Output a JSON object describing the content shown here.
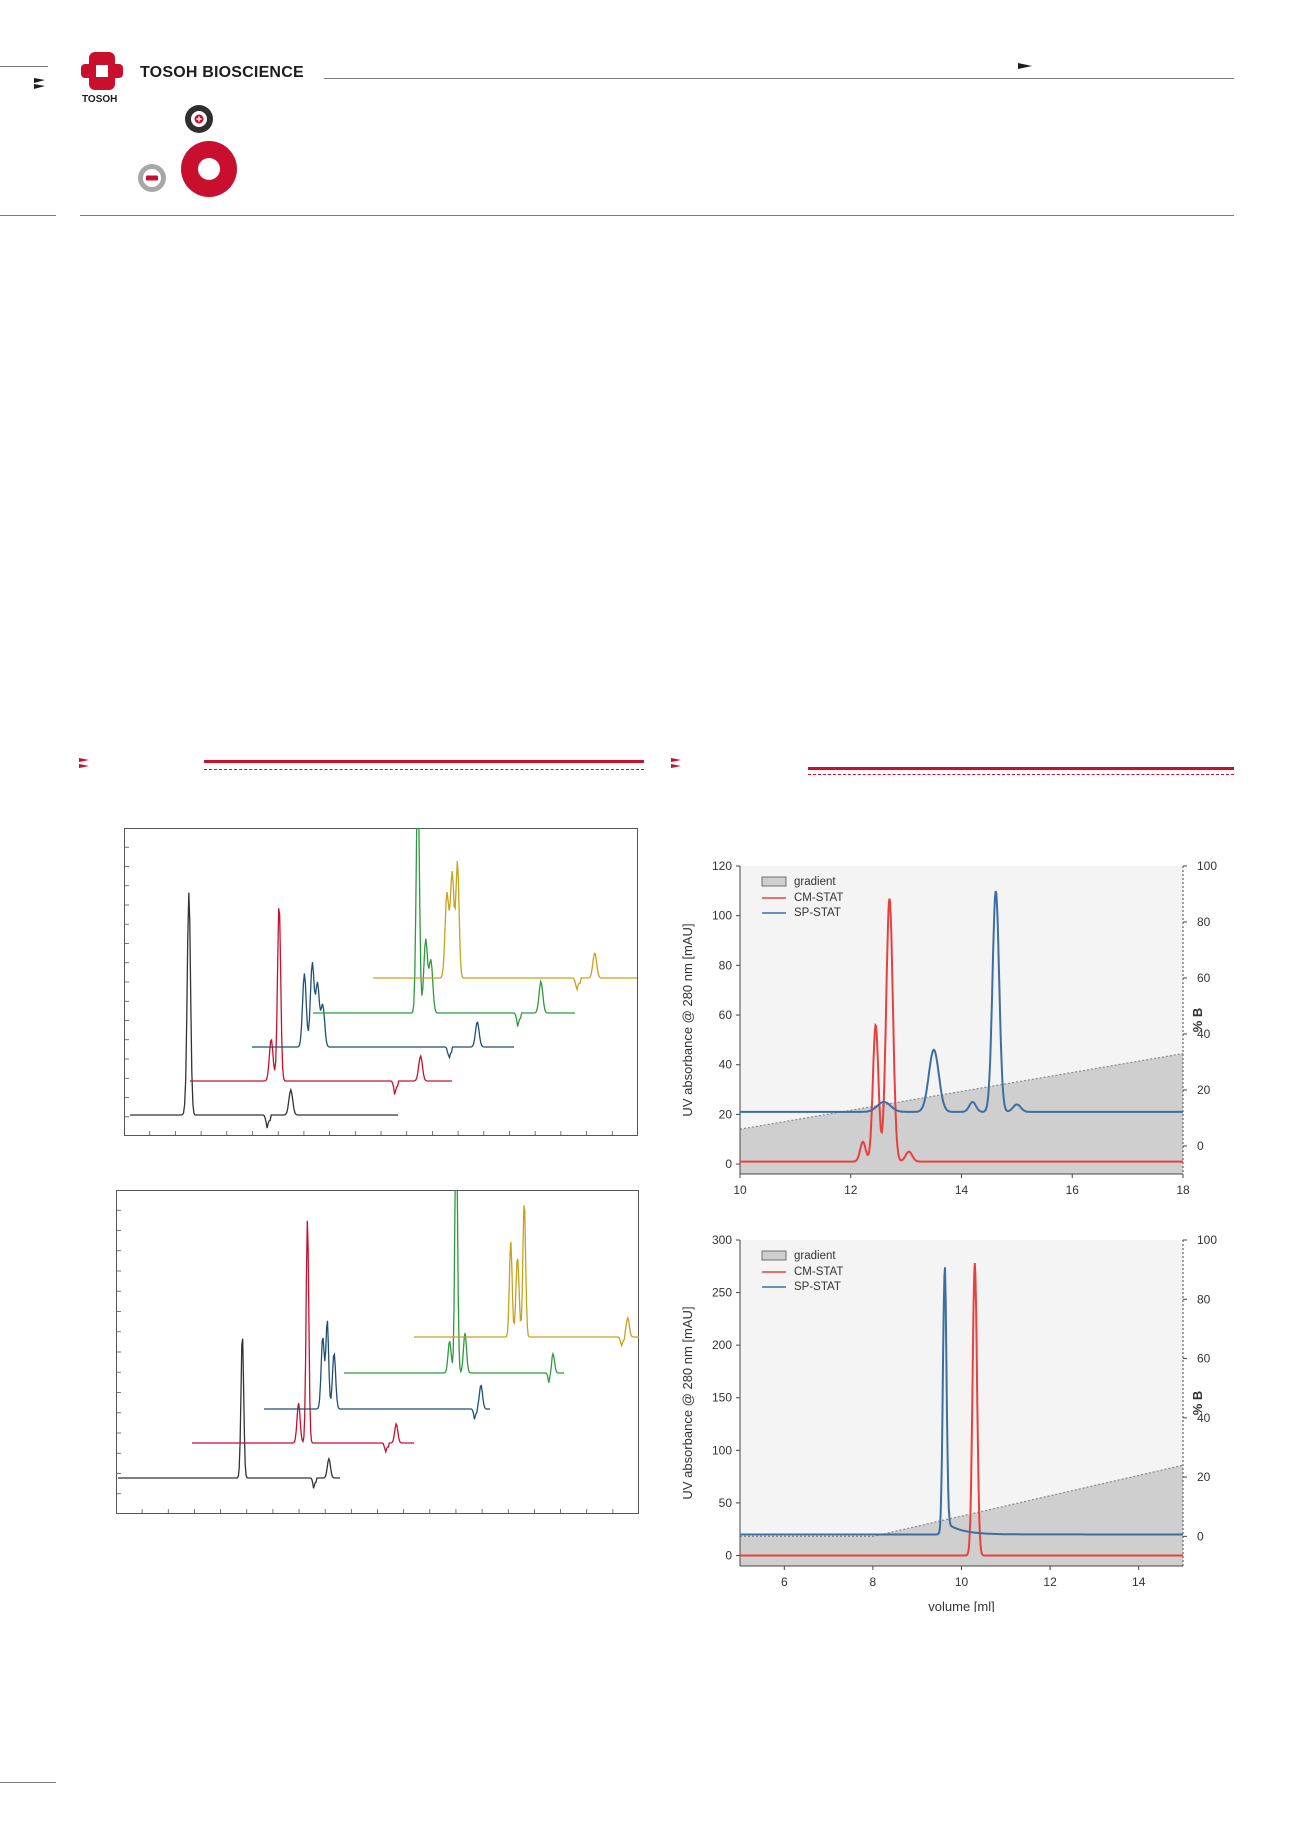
{
  "header": {
    "brand_name": "TOSOH BIOSCIENCE",
    "brand_small": "TOSOH"
  },
  "colors": {
    "brand_red": "#c8102e",
    "rule_gray": "#7a7a7a",
    "cm_stat": "#e8403f",
    "sp_stat": "#3d6ea3",
    "gradient_fill": "#cfcfcf"
  },
  "icons": {
    "logo": "tosoh-cross-logo",
    "nav_arrow": "double-chevron-icon",
    "plus_small": "cation-plus-icon",
    "minus_small": "anion-minus-icon",
    "red_ring": "red-ring-icon"
  },
  "stacked_panels": [
    {
      "traces": [
        {
          "color": "#333333",
          "peaks": [
            {
              "x": 0.22,
              "h": 1.0
            },
            {
              "x": 0.215,
              "h": 0.08
            },
            {
              "x": 0.6,
              "h": 0.12
            }
          ],
          "dip": 0.51
        },
        {
          "color": "#c8102e",
          "peaks": [
            {
              "x": 0.34,
              "h": 0.85
            },
            {
              "x": 0.31,
              "h": 0.2
            },
            {
              "x": 0.88,
              "h": 0.12
            }
          ],
          "dip": 0.78
        },
        {
          "color": "#1f4e79",
          "peaks": [
            {
              "x": 0.2,
              "h": 0.35
            },
            {
              "x": 0.23,
              "h": 0.4
            },
            {
              "x": 0.25,
              "h": 0.3
            },
            {
              "x": 0.27,
              "h": 0.2
            },
            {
              "x": 0.86,
              "h": 0.12
            }
          ],
          "dip": 0.75
        },
        {
          "color": "#2e9a3e",
          "peaks": [
            {
              "x": 0.4,
              "h": 1.15
            },
            {
              "x": 0.43,
              "h": 0.35
            },
            {
              "x": 0.45,
              "h": 0.25
            },
            {
              "x": 0.87,
              "h": 0.15
            }
          ],
          "dip": 0.78
        },
        {
          "color": "#c7a21b",
          "peaks": [
            {
              "x": 0.28,
              "h": 0.4
            },
            {
              "x": 0.3,
              "h": 0.5
            },
            {
              "x": 0.32,
              "h": 0.55
            },
            {
              "x": 0.84,
              "h": 0.12
            }
          ],
          "dip": 0.77
        }
      ]
    },
    {
      "traces": [
        {
          "color": "#333333",
          "peaks": [
            {
              "x": 0.56,
              "h": 0.9
            },
            {
              "x": 0.95,
              "h": 0.12
            }
          ],
          "dip": 0.88
        },
        {
          "color": "#c8102e",
          "peaks": [
            {
              "x": 0.52,
              "h": 1.4
            },
            {
              "x": 0.48,
              "h": 0.25
            },
            {
              "x": 0.92,
              "h": 0.12
            }
          ],
          "dip": 0.87
        },
        {
          "color": "#1f4e79",
          "peaks": [
            {
              "x": 0.26,
              "h": 0.45
            },
            {
              "x": 0.28,
              "h": 0.55
            },
            {
              "x": 0.31,
              "h": 0.35
            },
            {
              "x": 0.96,
              "h": 0.15
            }
          ],
          "dip": 0.93
        },
        {
          "color": "#2e9a3e",
          "peaks": [
            {
              "x": 0.51,
              "h": 1.6
            },
            {
              "x": 0.48,
              "h": 0.2
            },
            {
              "x": 0.55,
              "h": 0.25
            },
            {
              "x": 0.95,
              "h": 0.12
            }
          ],
          "dip": 0.93
        },
        {
          "color": "#c7a21b",
          "peaks": [
            {
              "x": 0.43,
              "h": 0.6
            },
            {
              "x": 0.46,
              "h": 0.5
            },
            {
              "x": 0.49,
              "h": 0.85
            },
            {
              "x": 0.95,
              "h": 0.12
            }
          ],
          "dip": 0.92
        }
      ]
    }
  ],
  "chart_data": [
    {
      "type": "line",
      "title": "",
      "xlabel": "",
      "ylabel": "UV absorbance @ 280 nm [mAU]",
      "y2label": "% B",
      "xlim": [
        10,
        18
      ],
      "ylim": [
        -4,
        120
      ],
      "y2lim": [
        -10,
        100
      ],
      "xticks": [
        "10",
        "12",
        "14",
        "16",
        "18"
      ],
      "yticks": [
        "0",
        "20",
        "40",
        "60",
        "80",
        "100",
        "120"
      ],
      "y2ticks": [
        "0",
        "20",
        "40",
        "60",
        "80",
        "100"
      ],
      "legend": {
        "position": "top-left",
        "entries": [
          "gradient",
          "CM-STAT",
          "SP-STAT"
        ]
      },
      "gradient": {
        "x": [
          10,
          18
        ],
        "y": [
          6,
          33
        ]
      },
      "series": [
        {
          "name": "CM-STAT",
          "color": "#e8403f",
          "baseline": 1,
          "peaks": [
            [
              12.22,
              8,
              0.05
            ],
            [
              12.45,
              55,
              0.05
            ],
            [
              12.7,
              106,
              0.06
            ],
            [
              13.05,
              4,
              0.06
            ]
          ]
        },
        {
          "name": "SP-STAT",
          "color": "#3d6ea3",
          "baseline": 21,
          "peaks": [
            [
              12.6,
              4,
              0.12
            ],
            [
              13.5,
              25,
              0.09
            ],
            [
              14.2,
              4,
              0.06
            ],
            [
              14.62,
              89,
              0.06
            ],
            [
              15.0,
              3,
              0.07
            ]
          ]
        }
      ]
    },
    {
      "type": "line",
      "title": "",
      "xlabel": "volume [ml]",
      "ylabel": "UV absorbance @ 280 nm [mAU]",
      "y2label": "% B",
      "xlim": [
        5,
        15
      ],
      "ylim": [
        -10,
        300
      ],
      "y2lim": [
        -10,
        100
      ],
      "xticks": [
        "6",
        "8",
        "10",
        "12",
        "14"
      ],
      "yticks": [
        "0",
        "50",
        "100",
        "150",
        "200",
        "250",
        "300"
      ],
      "y2ticks": [
        "0",
        "20",
        "40",
        "60",
        "80",
        "100"
      ],
      "legend": {
        "position": "top-left",
        "entries": [
          "gradient",
          "CM-STAT",
          "SP-STAT"
        ]
      },
      "gradient": {
        "x": [
          5,
          8,
          15
        ],
        "y": [
          0,
          0,
          24
        ]
      },
      "series": [
        {
          "name": "CM-STAT",
          "color": "#e8403f",
          "baseline": 0,
          "peaks": [
            [
              10.3,
              278,
              0.05
            ]
          ]
        },
        {
          "name": "SP-STAT",
          "color": "#3d6ea3",
          "baseline": 20,
          "peaks": [
            [
              9.62,
              248,
              0.04
            ]
          ],
          "tail": [
            9.62,
            20,
            0.35
          ]
        }
      ]
    }
  ]
}
